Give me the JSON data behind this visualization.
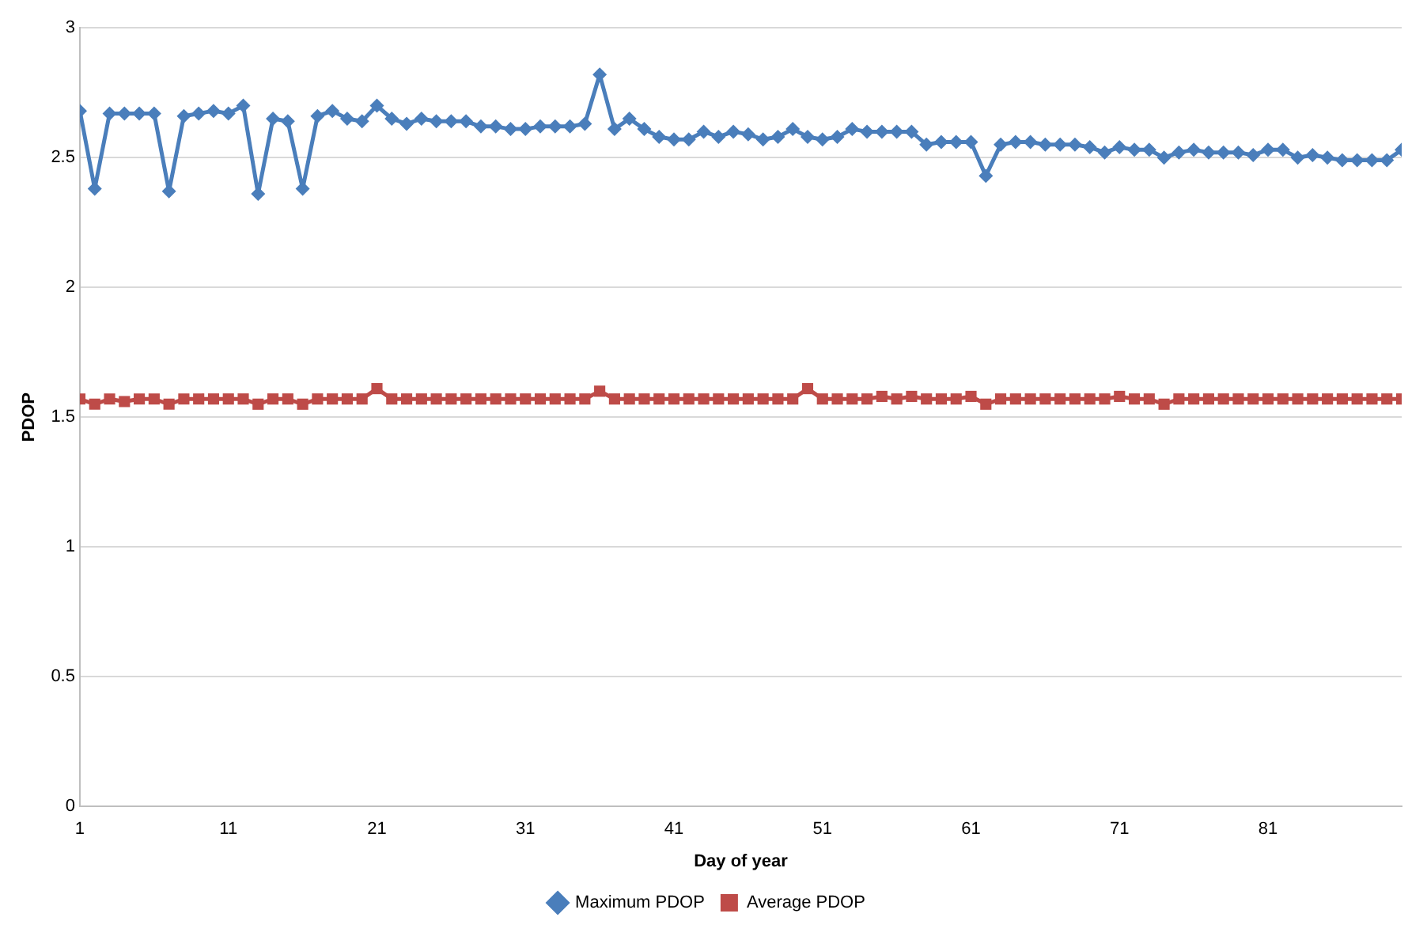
{
  "chart_data": {
    "type": "line",
    "xlabel": "Day of year",
    "ylabel": "PDOP",
    "x": [
      1,
      2,
      3,
      4,
      5,
      6,
      7,
      8,
      9,
      10,
      11,
      12,
      13,
      14,
      15,
      16,
      17,
      18,
      19,
      20,
      21,
      22,
      23,
      24,
      25,
      26,
      27,
      28,
      29,
      30,
      31,
      32,
      33,
      34,
      35,
      36,
      37,
      38,
      39,
      40,
      41,
      42,
      43,
      44,
      45,
      46,
      47,
      48,
      49,
      50,
      51,
      52,
      53,
      54,
      55,
      56,
      57,
      58,
      59,
      60,
      61,
      62,
      63,
      64,
      65,
      66,
      67,
      68,
      69,
      70,
      71,
      72,
      73,
      74,
      75,
      76,
      77,
      78,
      79,
      80,
      81,
      82,
      83,
      84,
      85,
      86,
      87,
      88,
      89,
      90
    ],
    "series": [
      {
        "name": "Maximum PDOP",
        "color": "#4a7ebb",
        "marker": "diamond",
        "values": [
          2.68,
          2.38,
          2.67,
          2.67,
          2.67,
          2.67,
          2.37,
          2.66,
          2.67,
          2.68,
          2.67,
          2.7,
          2.36,
          2.65,
          2.64,
          2.38,
          2.66,
          2.68,
          2.65,
          2.64,
          2.7,
          2.65,
          2.63,
          2.65,
          2.64,
          2.64,
          2.64,
          2.62,
          2.62,
          2.61,
          2.61,
          2.62,
          2.62,
          2.62,
          2.63,
          2.82,
          2.61,
          2.65,
          2.61,
          2.58,
          2.57,
          2.57,
          2.6,
          2.58,
          2.6,
          2.59,
          2.57,
          2.58,
          2.61,
          2.58,
          2.57,
          2.58,
          2.61,
          2.6,
          2.6,
          2.6,
          2.6,
          2.55,
          2.56,
          2.56,
          2.56,
          2.43,
          2.55,
          2.56,
          2.56,
          2.55,
          2.55,
          2.55,
          2.54,
          2.52,
          2.54,
          2.53,
          2.53,
          2.5,
          2.52,
          2.53,
          2.52,
          2.52,
          2.52,
          2.51,
          2.53,
          2.53,
          2.5,
          2.51,
          2.5,
          2.49,
          2.49,
          2.49,
          2.49,
          2.53
        ]
      },
      {
        "name": "Average PDOP",
        "color": "#be4b48",
        "marker": "square",
        "values": [
          1.57,
          1.55,
          1.57,
          1.56,
          1.57,
          1.57,
          1.55,
          1.57,
          1.57,
          1.57,
          1.57,
          1.57,
          1.55,
          1.57,
          1.57,
          1.55,
          1.57,
          1.57,
          1.57,
          1.57,
          1.61,
          1.57,
          1.57,
          1.57,
          1.57,
          1.57,
          1.57,
          1.57,
          1.57,
          1.57,
          1.57,
          1.57,
          1.57,
          1.57,
          1.57,
          1.6,
          1.57,
          1.57,
          1.57,
          1.57,
          1.57,
          1.57,
          1.57,
          1.57,
          1.57,
          1.57,
          1.57,
          1.57,
          1.57,
          1.61,
          1.57,
          1.57,
          1.57,
          1.57,
          1.58,
          1.57,
          1.58,
          1.57,
          1.57,
          1.57,
          1.58,
          1.55,
          1.57,
          1.57,
          1.57,
          1.57,
          1.57,
          1.57,
          1.57,
          1.57,
          1.58,
          1.57,
          1.57,
          1.55,
          1.57,
          1.57,
          1.57,
          1.57,
          1.57,
          1.57,
          1.57,
          1.57,
          1.57,
          1.57,
          1.57,
          1.57,
          1.57,
          1.57,
          1.57,
          1.57
        ]
      }
    ],
    "xlim": [
      1,
      90
    ],
    "xticks": [
      1,
      11,
      21,
      31,
      41,
      51,
      61,
      71,
      81
    ],
    "ylim": [
      0,
      3
    ],
    "yticks": [
      0,
      0.5,
      1,
      1.5,
      2,
      2.5,
      3
    ],
    "grid": "y",
    "legend": "bottom"
  }
}
